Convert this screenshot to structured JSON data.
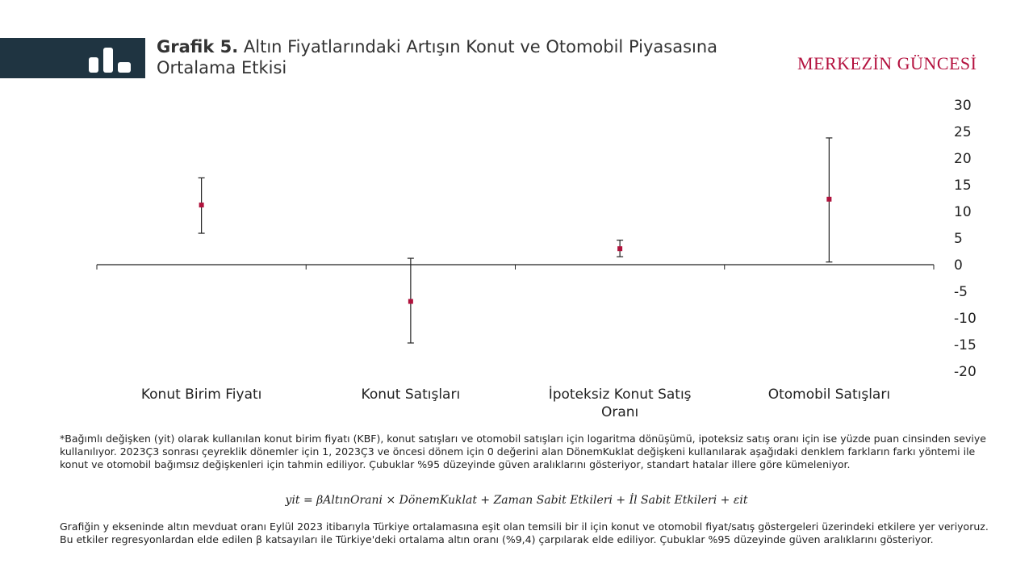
{
  "header": {
    "title_lead": "Grafik 5.",
    "title_rest": " Altın Fiyatlarındaki Artışın Konut ve Otomobil Piyasasına Ortalama Etkisi",
    "brand": "MERKEZİN GÜNCESİ",
    "logo_icon": "bar-chart-icon"
  },
  "colors": {
    "band": "#1f3441",
    "brand": "#b4123f",
    "marker": "#b0123c",
    "line": "#222222"
  },
  "chart_data": {
    "type": "errorbar",
    "title": "",
    "xlabel": "",
    "ylabel": "",
    "ylim": [
      -20,
      30
    ],
    "yticks": [
      30,
      25,
      20,
      15,
      10,
      5,
      0,
      -5,
      -10,
      -15,
      -20
    ],
    "yaxis_position": "right",
    "grid": false,
    "categories": [
      "Konut Birim Fiyatı",
      "Konut Satışları",
      "İpoteksiz Konut Satış Oranı",
      "Otomobil Satışları"
    ],
    "category_lines": [
      [
        "Konut Birim Fiyatı"
      ],
      [
        "Konut Satışları"
      ],
      [
        "İpoteksiz Konut Satış",
        "Oranı"
      ],
      [
        "Otomobil Satışları"
      ]
    ],
    "values": [
      11.2,
      -6.9,
      3.0,
      12.3
    ],
    "lower": [
      5.9,
      -14.7,
      1.5,
      0.5
    ],
    "upper": [
      16.3,
      1.2,
      4.6,
      23.8
    ]
  },
  "footnotes": {
    "note1": "*Bağımlı değişken (yit) olarak kullanılan konut birim fiyatı (KBF), konut satışları ve otomobil satışları için logaritma dönüşümü, ipoteksiz satış oranı için ise yüzde puan cinsinden seviye kullanılıyor. 2023Ç3 sonrası çeyreklik dönemler için 1, 2023Ç3 ve öncesi dönem için 0 değerini alan DönemKuklat değişkeni kullanılarak aşağıdaki denklem farkların farkı yöntemi ile konut ve otomobil bağımsız değişkenleri için tahmin ediliyor. Çubuklar %95 düzeyinde güven aralıklarını gösteriyor, standart hatalar illere göre kümeleniyor.",
    "equation": "yit = βAltınOrani × DönemKuklat + Zaman Sabit Etkileri + İl Sabit Etkileri + εit",
    "note2": "Grafiğin y ekseninde altın mevduat oranı Eylül 2023 itibarıyla Türkiye ortalamasına eşit olan temsili bir il için konut ve otomobil fiyat/satış göstergeleri üzerindeki etkilere yer veriyoruz. Bu etkiler regresyonlardan elde edilen β katsayıları ile Türkiye'deki ortalama altın oranı (%9,4) çarpılarak elde ediliyor. Çubuklar %95 düzeyinde güven aralıklarını gösteriyor."
  }
}
